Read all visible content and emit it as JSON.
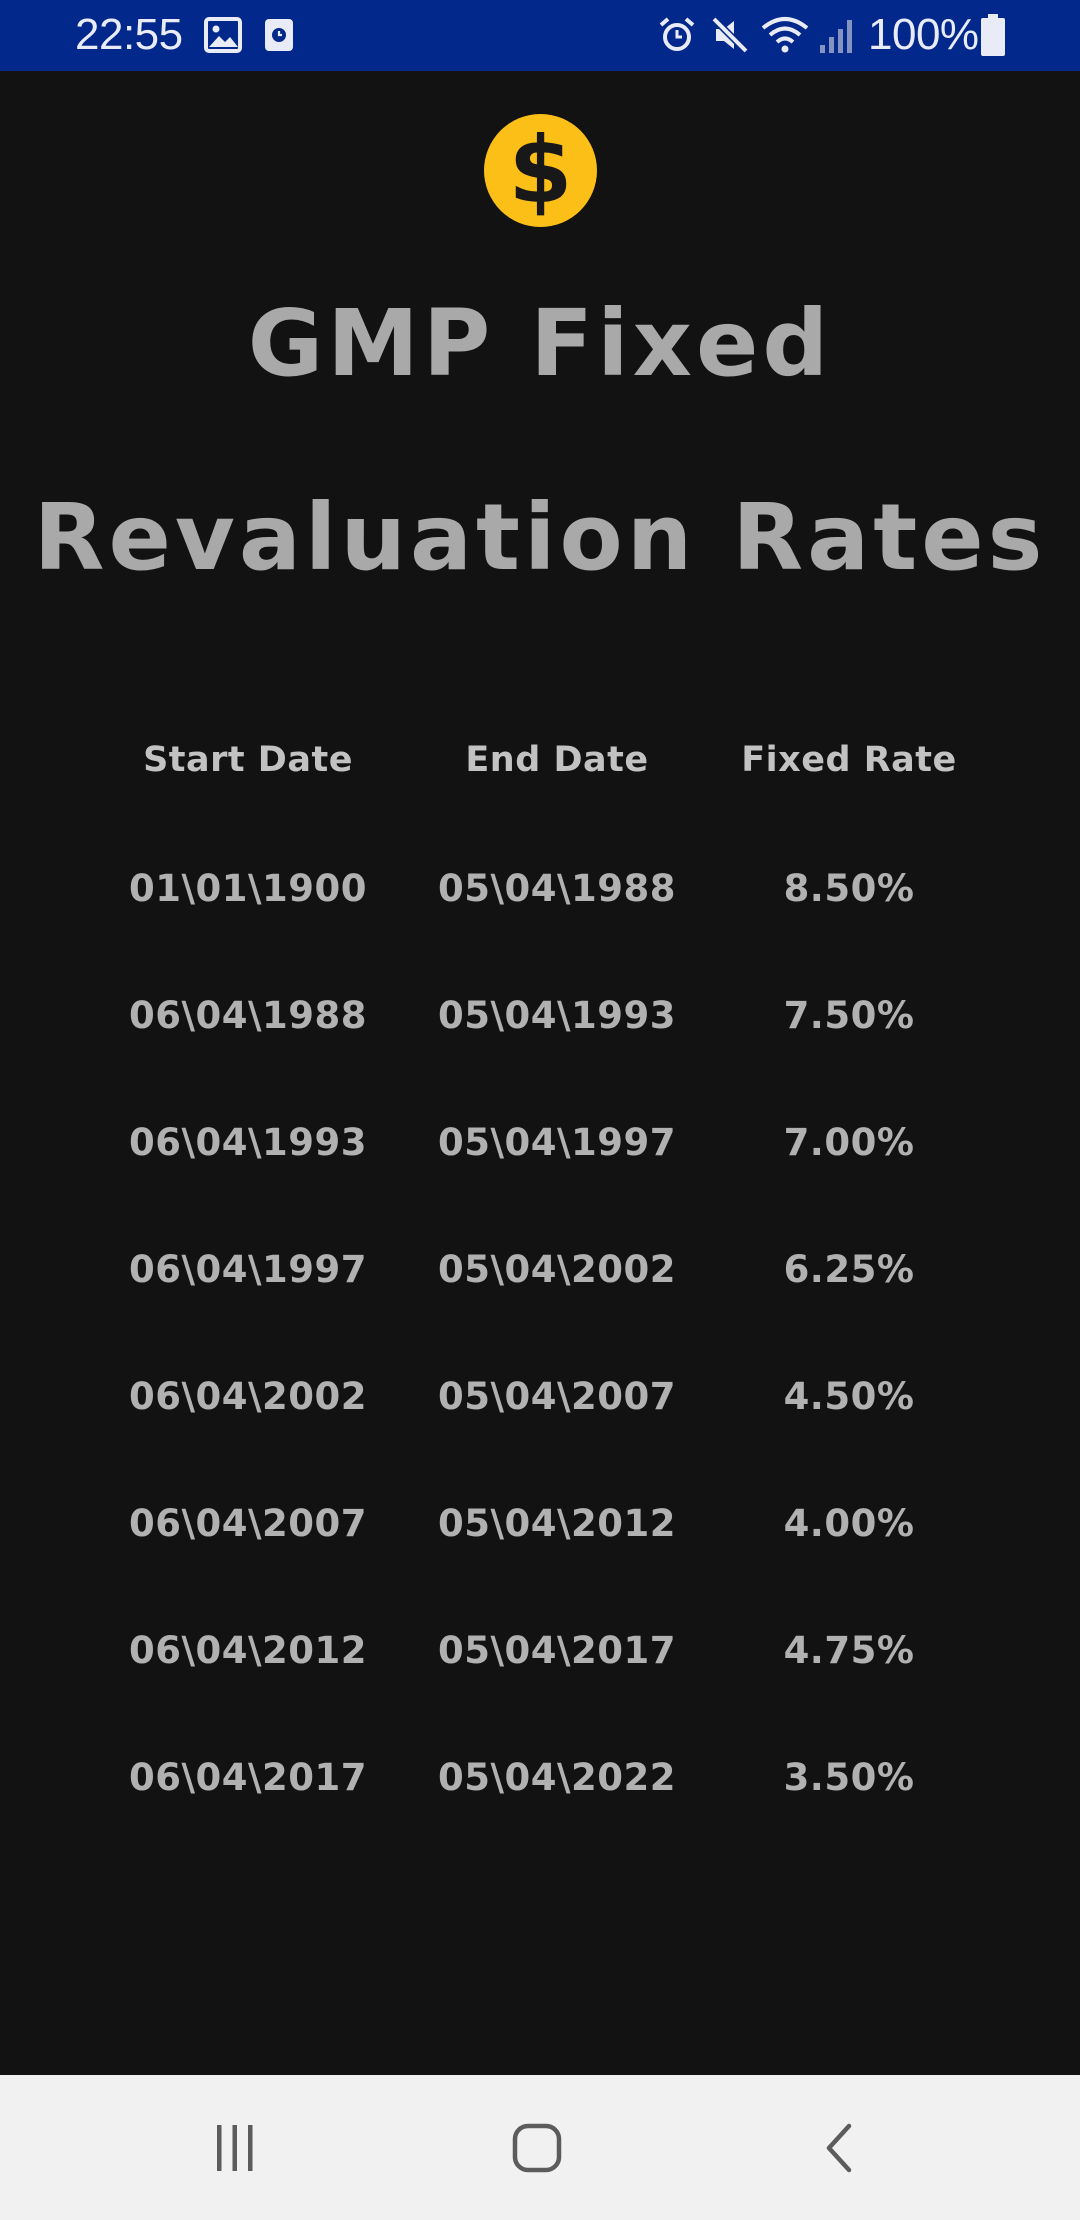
{
  "status_bar": {
    "time": "22:55",
    "battery": "100%",
    "left_icons": [
      "image-icon",
      "screen-record-icon"
    ],
    "right_icons": [
      "alarm-icon",
      "mute-icon",
      "wifi-icon",
      "signal-icon",
      "battery-icon"
    ]
  },
  "app": {
    "logo_icon": "dollar-coin-icon",
    "logo_glyph": "$",
    "accent_color": "#fcbf17",
    "title_line1": "GMP Fixed",
    "title_line2": "Revaluation Rates"
  },
  "table": {
    "headers": [
      "Start Date",
      "End Date",
      "Fixed Rate"
    ],
    "rows": [
      [
        "01\\01\\1900",
        "05\\04\\1988",
        "8.50%"
      ],
      [
        "06\\04\\1988",
        "05\\04\\1993",
        "7.50%"
      ],
      [
        "06\\04\\1993",
        "05\\04\\1997",
        "7.00%"
      ],
      [
        "06\\04\\1997",
        "05\\04\\2002",
        "6.25%"
      ],
      [
        "06\\04\\2002",
        "05\\04\\2007",
        "4.50%"
      ],
      [
        "06\\04\\2007",
        "05\\04\\2012",
        "4.00%"
      ],
      [
        "06\\04\\2012",
        "05\\04\\2017",
        "4.75%"
      ],
      [
        "06\\04\\2017",
        "05\\04\\2022",
        "3.50%"
      ]
    ]
  },
  "nav_bar": {
    "buttons": [
      "recent-apps-icon",
      "home-icon",
      "back-icon"
    ]
  }
}
